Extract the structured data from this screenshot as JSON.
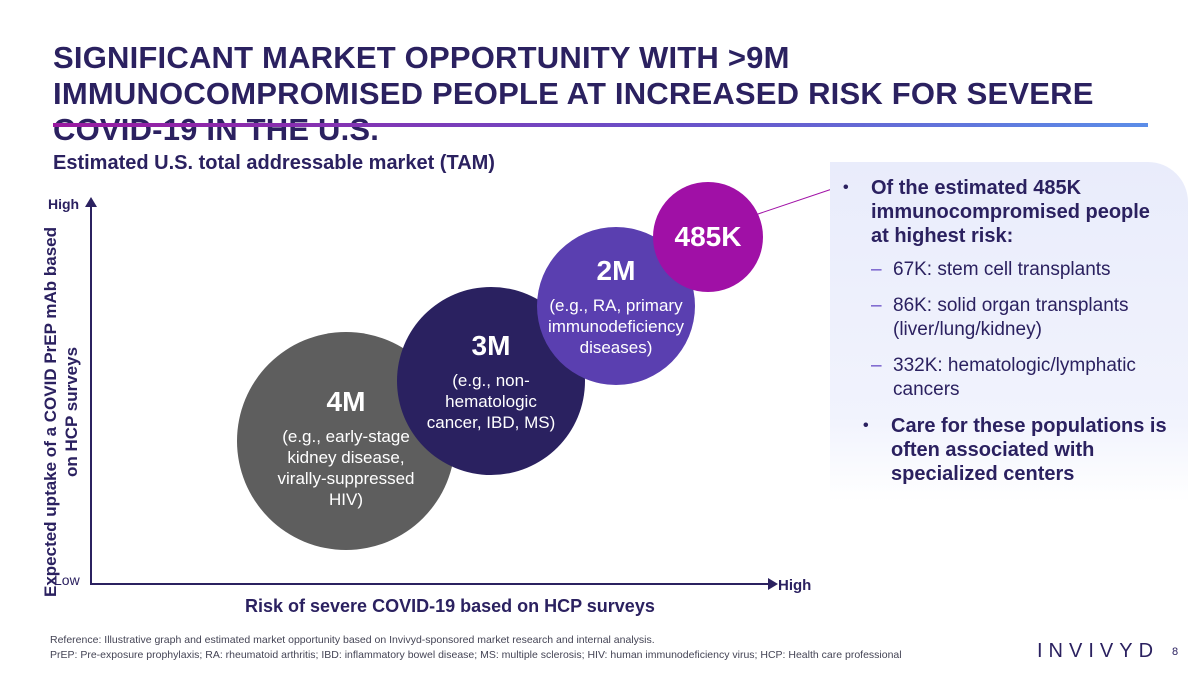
{
  "slide": {
    "title": "SIGNIFICANT MARKET OPPORTUNITY WITH >9M IMMUNOCOMPROMISED PEOPLE AT INCREASED RISK FOR SEVERE COVID-19 IN THE U.S.",
    "subtitle": "Estimated U.S. total addressable market (TAM)",
    "page_number": "8",
    "logo_text": "INVIVYD"
  },
  "chart_data": {
    "type": "scatter",
    "title": "Estimated U.S. total addressable market (TAM)",
    "xlabel": "Risk of severe COVID-19 based on HCP surveys",
    "ylabel": "Expected uptake of a COVID PrEP mAb based on HCP surveys",
    "x_low_label": "Low",
    "x_high_label": "High",
    "y_high_label": "High",
    "points": [
      {
        "label": "4M",
        "description": "(e.g., early-stage kidney disease, virally-suppressed HIV)",
        "population_millions": 4,
        "color": "#5e5e5e"
      },
      {
        "label": "3M",
        "description": "(e.g., non-hematologic cancer, IBD, MS)",
        "population_millions": 3,
        "color": "#2a2160"
      },
      {
        "label": "2M",
        "description": "(e.g., RA, primary immunodeficiency diseases)",
        "population_millions": 2,
        "color": "#5a3fb0"
      },
      {
        "label": "485K",
        "description": "",
        "population_millions": 0.485,
        "color": "#a010a6"
      }
    ]
  },
  "panel": {
    "bullet1": "Of the estimated 485K immunocompromised people at highest risk:",
    "subitems": [
      "67K: stem cell transplants",
      "86K: solid organ transplants (liver/lung/kidney)",
      "332K: hematologic/lymphatic cancers"
    ],
    "bullet2": "Care for these populations is often associated with specialized centers"
  },
  "footnotes": {
    "line1": "Reference: Illustrative graph and estimated market opportunity based on Invivyd-sponsored market research and internal analysis.",
    "line2": "PrEP: Pre-exposure prophylaxis; RA: rheumatoid arthritis; IBD: inflammatory bowel disease; MS: multiple sclerosis; HIV: human immunodeficiency virus; HCP: Health care professional"
  },
  "colors": {
    "navy": "#2b2160",
    "purple": "#5a3fb0",
    "magenta": "#a010a6",
    "gray": "#5e5e5e",
    "accent_blue": "#5b8de8"
  }
}
